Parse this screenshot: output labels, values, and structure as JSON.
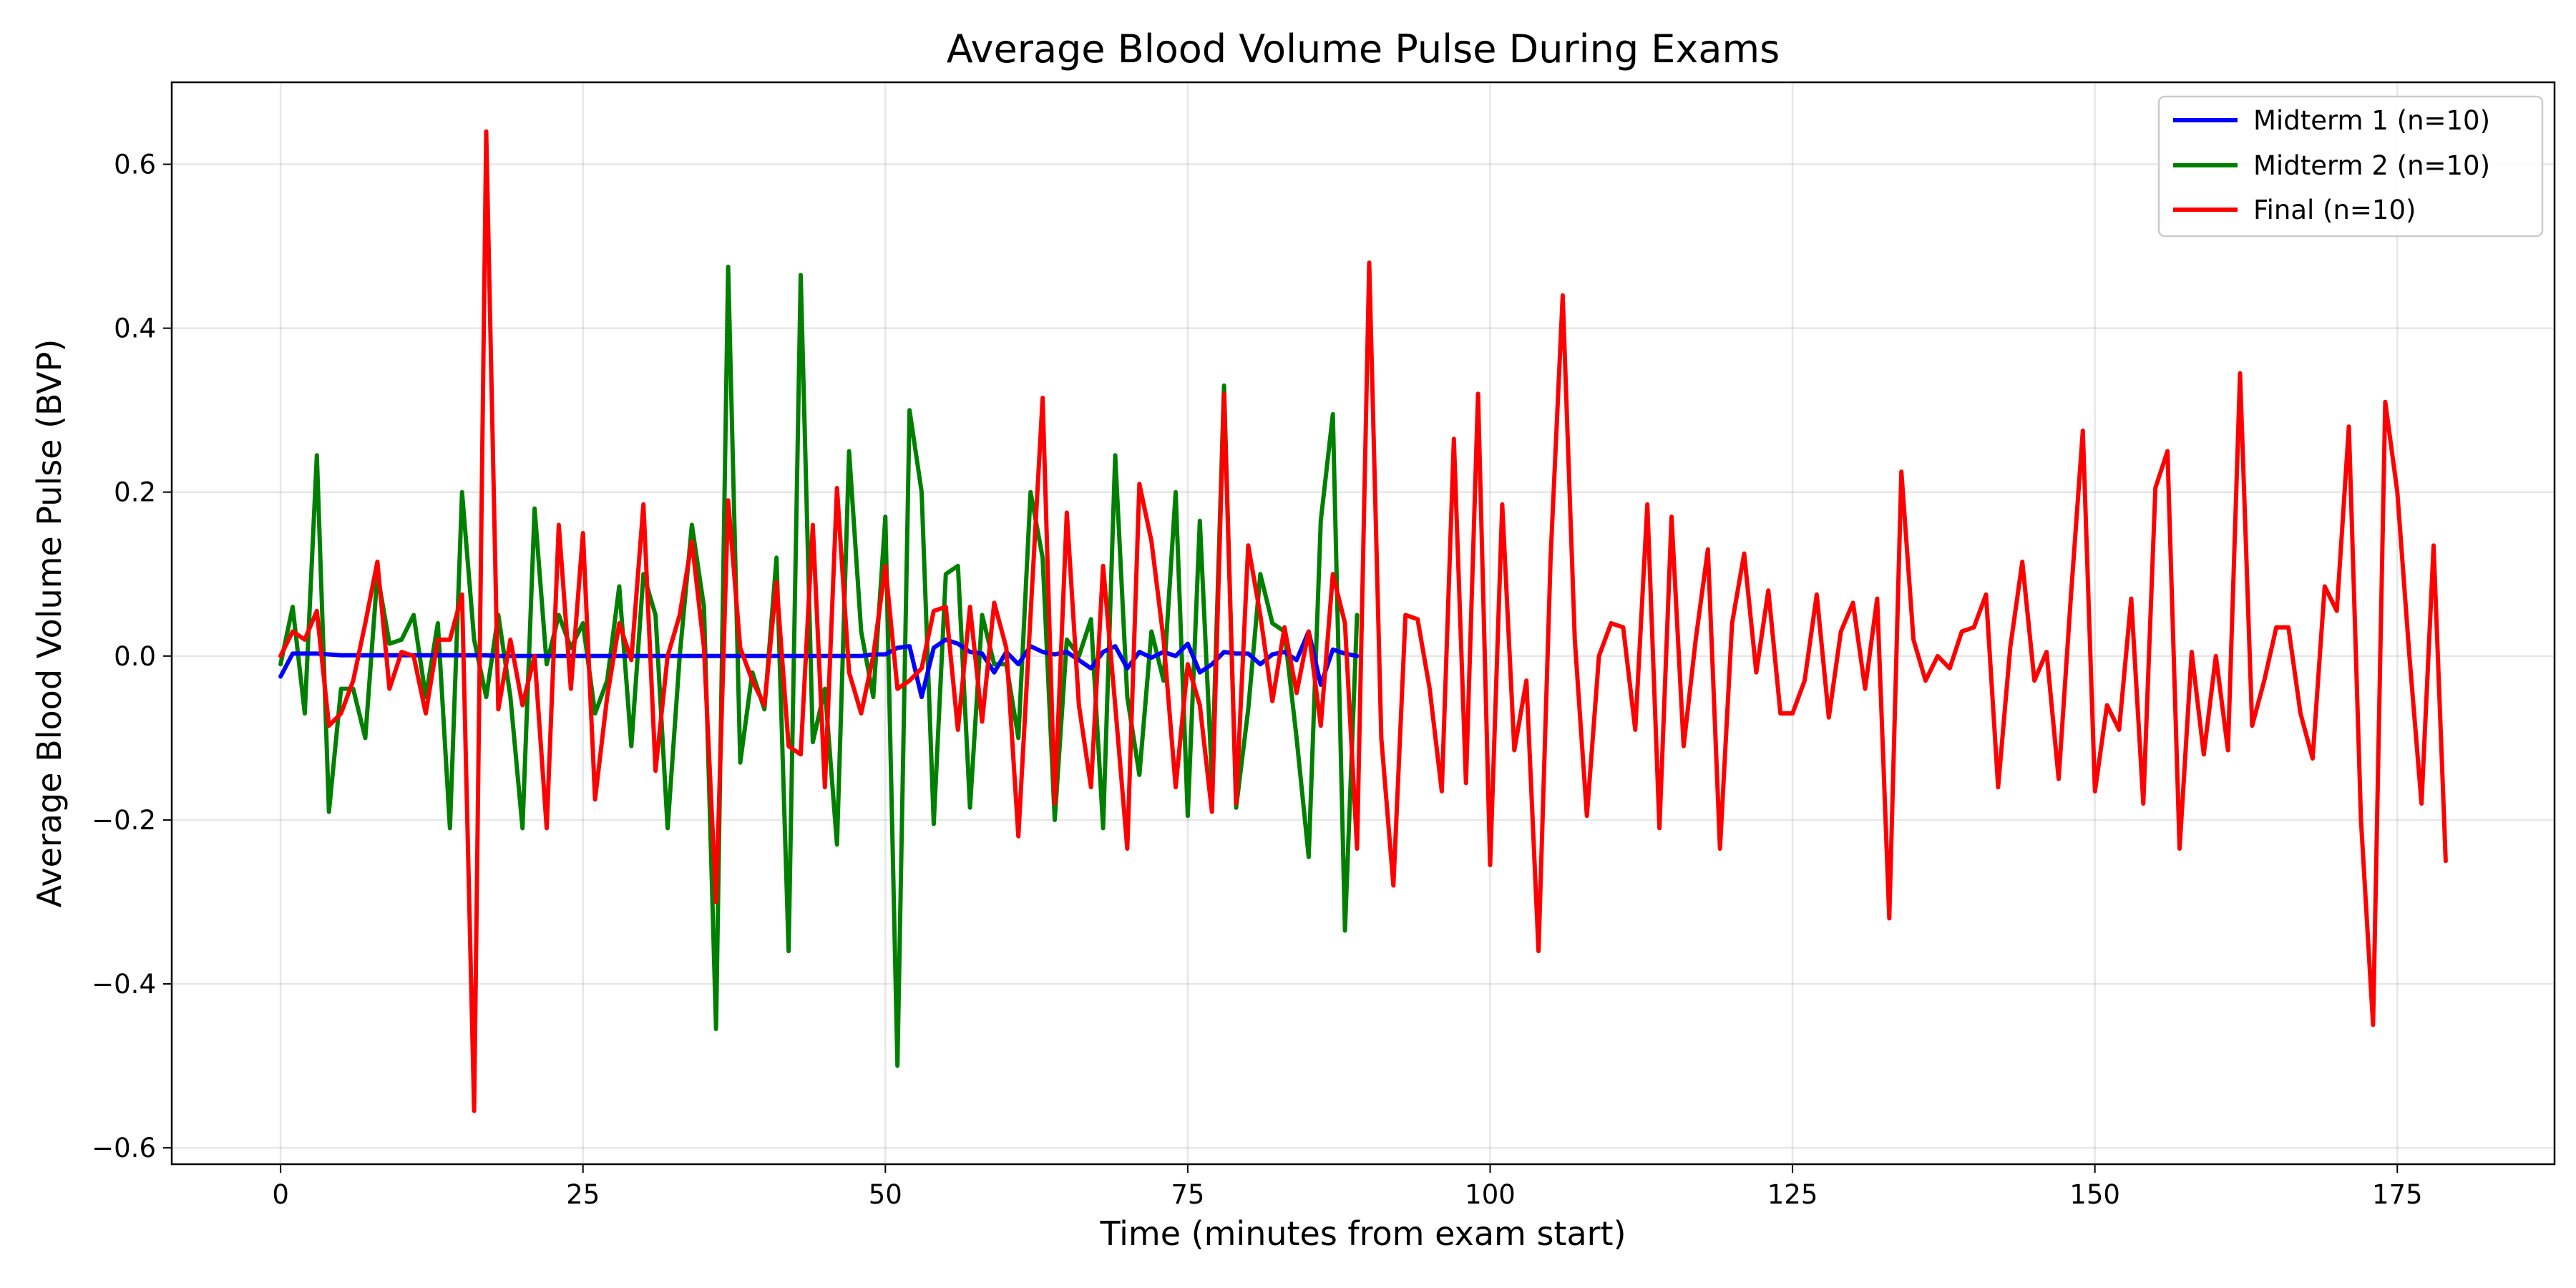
{
  "chart_data": {
    "type": "line",
    "title": "Average Blood Volume Pulse During Exams",
    "xlabel": "Time (minutes from exam start)",
    "ylabel": "Average Blood Volume Pulse (BVP)",
    "xlim": [
      -9,
      188
    ],
    "ylim": [
      -0.62,
      0.7
    ],
    "xticks": [
      0,
      25,
      50,
      75,
      100,
      125,
      150,
      175
    ],
    "xtick_labels": [
      "0",
      "25",
      "50",
      "75",
      "100",
      "125",
      "150",
      "175"
    ],
    "yticks": [
      -0.6,
      -0.4,
      -0.2,
      0.0,
      0.2,
      0.4,
      0.6
    ],
    "ytick_labels": [
      "−0.6",
      "−0.4",
      "−0.2",
      "0.0",
      "0.2",
      "0.4",
      "0.6"
    ],
    "grid": true,
    "legend_position": "top-right",
    "series": [
      {
        "name": "Midterm 1 (n=10)",
        "color": "#0000ff",
        "x": [
          0,
          1,
          2,
          3,
          4,
          5,
          6,
          7,
          8,
          9,
          10,
          11,
          12,
          13,
          14,
          15,
          16,
          17,
          18,
          19,
          20,
          21,
          22,
          23,
          24,
          25,
          26,
          27,
          28,
          29,
          30,
          31,
          32,
          33,
          34,
          35,
          36,
          37,
          38,
          39,
          40,
          41,
          42,
          43,
          44,
          45,
          46,
          47,
          48,
          49,
          50,
          51,
          52,
          53,
          54,
          55,
          56,
          57,
          58,
          59,
          60,
          61,
          62,
          63,
          64,
          65,
          66,
          67,
          68,
          69,
          70,
          71,
          72,
          73,
          74,
          75,
          76,
          77,
          78,
          79,
          80,
          81,
          82,
          83,
          84,
          85,
          86,
          87,
          88,
          89
        ],
        "y": [
          -0.025,
          0.003,
          0.003,
          0.003,
          0.002,
          0.001,
          0.001,
          0.001,
          0.001,
          0.001,
          0.001,
          0.001,
          0.001,
          0.001,
          0.001,
          0.001,
          0.001,
          0.001,
          0.0,
          0.0,
          0.0,
          0.0,
          0.0,
          0.0,
          0.0,
          0.0,
          0.0,
          0.0,
          0.0,
          0.0,
          0.0,
          0.0,
          0.0,
          0.0,
          0.0,
          0.0,
          0.0,
          0.0,
          0.0,
          0.0,
          0.0,
          0.0,
          0.0,
          0.0,
          0.0,
          0.0,
          0.0,
          0.0,
          0.0,
          0.002,
          0.002,
          0.01,
          0.012,
          -0.05,
          0.01,
          0.02,
          0.015,
          0.005,
          0.003,
          -0.02,
          0.005,
          -0.01,
          0.012,
          0.005,
          0.002,
          0.005,
          -0.005,
          -0.015,
          0.005,
          0.012,
          -0.015,
          0.005,
          -0.002,
          0.005,
          0.0,
          0.015,
          -0.02,
          -0.01,
          0.005,
          0.003,
          0.003,
          -0.01,
          0.002,
          0.005,
          -0.005,
          0.03,
          -0.035,
          0.008,
          0.003,
          0.0
        ]
      },
      {
        "name": "Midterm 2 (n=10)",
        "color": "#008000",
        "x": [
          0,
          1,
          2,
          3,
          4,
          5,
          6,
          7,
          8,
          9,
          10,
          11,
          12,
          13,
          14,
          15,
          16,
          17,
          18,
          19,
          20,
          21,
          22,
          23,
          24,
          25,
          26,
          27,
          28,
          29,
          30,
          31,
          32,
          33,
          34,
          35,
          36,
          37,
          38,
          39,
          40,
          41,
          42,
          43,
          44,
          45,
          46,
          47,
          48,
          49,
          50,
          51,
          52,
          53,
          54,
          55,
          56,
          57,
          58,
          59,
          60,
          61,
          62,
          63,
          64,
          65,
          66,
          67,
          68,
          69,
          70,
          71,
          72,
          73,
          74,
          75,
          76,
          77,
          78,
          79,
          80,
          81,
          82,
          83,
          84,
          85,
          86,
          87,
          88,
          89
        ],
        "y": [
          -0.01,
          0.06,
          -0.07,
          0.245,
          -0.19,
          -0.04,
          -0.04,
          -0.1,
          0.1,
          0.015,
          0.02,
          0.05,
          -0.05,
          0.04,
          -0.21,
          0.2,
          0.02,
          -0.05,
          0.05,
          -0.05,
          -0.21,
          0.18,
          -0.01,
          0.05,
          0.01,
          0.04,
          -0.07,
          -0.03,
          0.085,
          -0.11,
          0.1,
          0.05,
          -0.21,
          0.0,
          0.16,
          0.06,
          -0.455,
          0.475,
          -0.13,
          -0.02,
          -0.065,
          0.12,
          -0.36,
          0.465,
          -0.105,
          -0.04,
          -0.23,
          0.25,
          0.03,
          -0.05,
          0.17,
          -0.5,
          0.3,
          0.2,
          -0.205,
          0.1,
          0.11,
          -0.185,
          0.05,
          -0.01,
          -0.01,
          -0.1,
          0.2,
          0.12,
          -0.2,
          0.02,
          0.0,
          0.045,
          -0.21,
          0.245,
          -0.05,
          -0.145,
          0.03,
          -0.03,
          0.2,
          -0.195,
          0.165,
          -0.15,
          0.33,
          -0.185,
          -0.065,
          0.1,
          0.04,
          0.03,
          -0.1,
          -0.245,
          0.165,
          0.295,
          -0.335,
          0.05
        ]
      },
      {
        "name": "Final (n=10)",
        "color": "#ff0000",
        "x": [
          0,
          1,
          2,
          3,
          4,
          5,
          6,
          7,
          8,
          9,
          10,
          11,
          12,
          13,
          14,
          15,
          16,
          17,
          18,
          19,
          20,
          21,
          22,
          23,
          24,
          25,
          26,
          27,
          28,
          29,
          30,
          31,
          32,
          33,
          34,
          35,
          36,
          37,
          38,
          39,
          40,
          41,
          42,
          43,
          44,
          45,
          46,
          47,
          48,
          49,
          50,
          51,
          52,
          53,
          54,
          55,
          56,
          57,
          58,
          59,
          60,
          61,
          62,
          63,
          64,
          65,
          66,
          67,
          68,
          69,
          70,
          71,
          72,
          73,
          74,
          75,
          76,
          77,
          78,
          79,
          80,
          81,
          82,
          83,
          84,
          85,
          86,
          87,
          88,
          89,
          90,
          91,
          92,
          93,
          94,
          95,
          96,
          97,
          98,
          99,
          100,
          101,
          102,
          103,
          104,
          105,
          106,
          107,
          108,
          109,
          110,
          111,
          112,
          113,
          114,
          115,
          116,
          117,
          118,
          119,
          120,
          121,
          122,
          123,
          124,
          125,
          126,
          127,
          128,
          129,
          130,
          131,
          132,
          133,
          134,
          135,
          136,
          137,
          138,
          139,
          140,
          141,
          142,
          143,
          144,
          145,
          146,
          147,
          148,
          149,
          150,
          151,
          152,
          153,
          154,
          155,
          156,
          157,
          158,
          159,
          160,
          161,
          162,
          163,
          164,
          165,
          166,
          167,
          168,
          169,
          170,
          171,
          172,
          173,
          174,
          175,
          176,
          177,
          178,
          179
        ],
        "y": [
          0.0,
          0.03,
          0.02,
          0.055,
          -0.085,
          -0.07,
          -0.03,
          0.04,
          0.115,
          -0.04,
          0.005,
          0.0,
          -0.07,
          0.02,
          0.02,
          0.075,
          -0.555,
          0.64,
          -0.065,
          0.02,
          -0.06,
          0.0,
          -0.21,
          0.16,
          -0.04,
          0.15,
          -0.175,
          -0.05,
          0.04,
          -0.005,
          0.185,
          -0.14,
          0.0,
          0.05,
          0.14,
          0.01,
          -0.3,
          0.19,
          0.01,
          -0.03,
          -0.06,
          0.09,
          -0.11,
          -0.12,
          0.16,
          -0.16,
          0.205,
          -0.02,
          -0.07,
          0.0,
          0.11,
          -0.04,
          -0.03,
          -0.015,
          0.055,
          0.06,
          -0.09,
          0.06,
          -0.08,
          0.065,
          0.01,
          -0.22,
          0.05,
          0.315,
          -0.18,
          0.175,
          -0.06,
          -0.16,
          0.11,
          -0.06,
          -0.235,
          0.21,
          0.14,
          0.02,
          -0.16,
          -0.01,
          -0.06,
          -0.19,
          0.32,
          -0.18,
          0.135,
          0.05,
          -0.055,
          0.035,
          -0.045,
          0.03,
          -0.085,
          0.1,
          0.04,
          -0.235,
          0.48,
          -0.1,
          -0.28,
          0.05,
          0.045,
          -0.04,
          -0.165,
          0.265,
          -0.155,
          0.32,
          -0.255,
          0.185,
          -0.115,
          -0.03,
          -0.36,
          0.12,
          0.44,
          0.02,
          -0.195,
          0.0,
          0.04,
          0.035,
          -0.09,
          0.185,
          -0.21,
          0.17,
          -0.11,
          0.02,
          0.13,
          -0.235,
          0.04,
          0.125,
          -0.02,
          0.08,
          -0.07,
          -0.07,
          -0.03,
          0.075,
          -0.075,
          0.03,
          0.065,
          -0.04,
          0.07,
          -0.32,
          0.225,
          0.02,
          -0.03,
          0.0,
          -0.015,
          0.03,
          0.035,
          0.075,
          -0.16,
          0.01,
          0.115,
          -0.03,
          0.005,
          -0.15,
          0.07,
          0.275,
          -0.165,
          -0.06,
          -0.09,
          0.07,
          -0.18,
          0.205,
          0.25,
          -0.235,
          0.005,
          -0.12,
          0.0,
          -0.115,
          0.345,
          -0.085,
          -0.03,
          0.035,
          0.035,
          -0.07,
          -0.125,
          0.085,
          0.055,
          0.28,
          -0.2,
          -0.45,
          0.31,
          0.2,
          0.0,
          -0.18,
          0.135,
          -0.25
        ]
      }
    ]
  }
}
